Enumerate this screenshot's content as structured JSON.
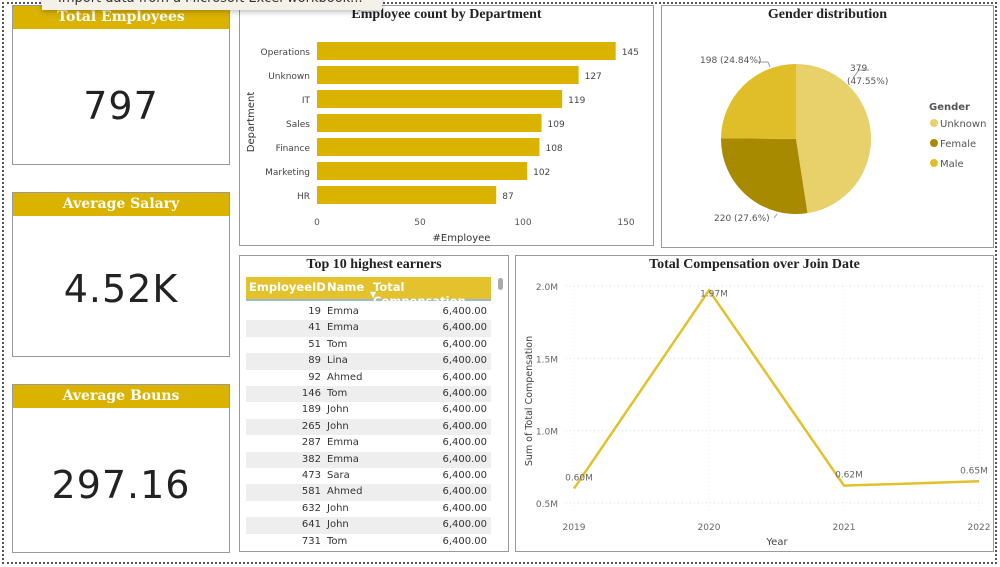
{
  "tooltip": "Import data from a Microsoft Excel workbook...",
  "kpis": [
    {
      "label": "Total Employees",
      "value": "797"
    },
    {
      "label": "Average Salary",
      "value": "4.52K"
    },
    {
      "label": "Average Bouns",
      "value": "297.16"
    }
  ],
  "colors": {
    "accent": "#dab300",
    "header": "#e3c22d",
    "line": "#e2c12c"
  },
  "chart_data": [
    {
      "type": "bar",
      "orientation": "horizontal",
      "title": "Employee count by Department",
      "xlabel": "#Employee",
      "ylabel": "Department",
      "categories": [
        "Operations",
        "Unknown",
        "IT",
        "Sales",
        "Finance",
        "Marketing",
        "HR"
      ],
      "values": [
        145,
        127,
        119,
        109,
        108,
        102,
        87
      ],
      "xlim": [
        0,
        150
      ],
      "xticks": [
        0,
        50,
        100,
        150
      ],
      "grid": false,
      "color": "#dab300"
    },
    {
      "type": "pie",
      "title": "Gender distribution",
      "legend_title": "Gender",
      "legend_placement": "right",
      "slices": [
        {
          "name": "Unknown",
          "value": 379,
          "label": "379",
          "pct": "(47.55%)",
          "color": "#e8d06a"
        },
        {
          "name": "Female",
          "value": 220,
          "label": "220 (27.6%)",
          "color": "#a88a00"
        },
        {
          "name": "Male",
          "value": 198,
          "label": "198 (24.84%)",
          "color": "#e0be2a"
        }
      ]
    },
    {
      "type": "line",
      "title": "Total Compensation over Join Date",
      "xlabel": "Year",
      "ylabel": "Sum of Total Compensation",
      "x": [
        "2019",
        "2020",
        "2021",
        "2022"
      ],
      "values": [
        0.6,
        1.97,
        0.62,
        0.65
      ],
      "labels": [
        "0.60M",
        "1.97M",
        "0.62M",
        "0.65M"
      ],
      "ylim": [
        0.5,
        2.0
      ],
      "yticks": [
        "0.5M",
        "1.0M",
        "1.5M",
        "2.0M"
      ],
      "grid": true,
      "color": "#e2c12c"
    }
  ],
  "table": {
    "title": "Top 10 highest earners",
    "columns": [
      "EmployeeID",
      "Name",
      "Total Compensation"
    ],
    "sort_icon": "sort-desc-icon",
    "rows": [
      [
        "19",
        "Emma",
        "6,400.00"
      ],
      [
        "41",
        "Emma",
        "6,400.00"
      ],
      [
        "51",
        "Tom",
        "6,400.00"
      ],
      [
        "89",
        "Lina",
        "6,400.00"
      ],
      [
        "92",
        "Ahmed",
        "6,400.00"
      ],
      [
        "146",
        "Tom",
        "6,400.00"
      ],
      [
        "189",
        "John",
        "6,400.00"
      ],
      [
        "265",
        "John",
        "6,400.00"
      ],
      [
        "287",
        "Emma",
        "6,400.00"
      ],
      [
        "382",
        "Emma",
        "6,400.00"
      ],
      [
        "473",
        "Sara",
        "6,400.00"
      ],
      [
        "581",
        "Ahmed",
        "6,400.00"
      ],
      [
        "632",
        "John",
        "6,400.00"
      ],
      [
        "641",
        "John",
        "6,400.00"
      ],
      [
        "731",
        "Tom",
        "6,400.00"
      ]
    ]
  }
}
